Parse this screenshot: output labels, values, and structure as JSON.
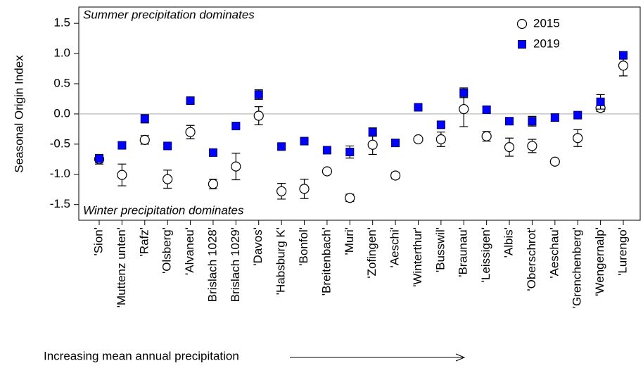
{
  "chart_data": {
    "type": "errorbar",
    "y_label": "Seasonal Origin Index",
    "annotations": [
      "Summer precipitation dominates",
      "Winter precipitation dominates"
    ],
    "x_note": "Increasing mean annual precipitation",
    "categories": [
      "'Sion'",
      "'Muttenz unten'",
      "'Rafz'",
      "'Olsberg'",
      "'Alvaneu'",
      "Brislach 1028'",
      "Brislach 1029'",
      "'Davos'",
      "'Habsburg K'",
      "'Bonfol'",
      "'Breitenbach'",
      "'Muri'",
      "'Zofingen'",
      "'Aeschi'",
      "'Winterthur'",
      "'Busswil'",
      "'Braunau'",
      "'Leissigen'",
      "'Albis'",
      "'Oberschrot'",
      "'Aeschau'",
      "'Grenchenberg'",
      "'Wengernalp'",
      "'Lurengo'"
    ],
    "series": [
      {
        "name": "2015",
        "marker": "circle",
        "color": "#000000",
        "values": [
          -0.75,
          -1.01,
          -0.43,
          -1.08,
          -0.3,
          -1.16,
          -0.87,
          -0.03,
          -1.28,
          -1.24,
          -0.95,
          -1.39,
          -0.51,
          -1.02,
          -0.42,
          -0.42,
          0.08,
          -0.37,
          -0.55,
          -0.53,
          -0.79,
          -0.4,
          0.1,
          0.8
        ],
        "errors": [
          0.08,
          0.18,
          0.07,
          0.15,
          0.11,
          0.08,
          0.22,
          0.15,
          0.13,
          0.16,
          0.04,
          0.06,
          0.16,
          0.05,
          0.01,
          0.12,
          0.29,
          0.08,
          0.15,
          0.11,
          0.03,
          0.14,
          0.06,
          0.17
        ]
      },
      {
        "name": "2019",
        "marker": "square",
        "color": "#0000ff",
        "values": [
          -0.74,
          -0.52,
          -0.08,
          -0.53,
          0.22,
          -0.64,
          -0.2,
          0.32,
          -0.54,
          -0.45,
          -0.6,
          -0.63,
          -0.3,
          -0.48,
          0.11,
          -0.18,
          0.35,
          0.07,
          -0.12,
          -0.12,
          -0.06,
          -0.02,
          0.2,
          0.97
        ],
        "errors": [
          0.05,
          0.05,
          0.07,
          0.03,
          0.05,
          0.04,
          0.03,
          0.08,
          0.04,
          0.03,
          0.04,
          0.1,
          0.07,
          0.06,
          0.04,
          0.05,
          0.08,
          0.05,
          0.05,
          0.08,
          0.06,
          0.05,
          0.12,
          0.06
        ]
      }
    ],
    "ylim": [
      -1.76,
      1.77
    ],
    "yticks": [
      {
        "value": -1.5,
        "label": "-1.5"
      },
      {
        "value": -1,
        "label": "-1.0"
      },
      -0.5,
      {
        "value": 0,
        "label": "0.0"
      },
      0.5,
      {
        "value": 1,
        "label": "1.0"
      },
      1.5
    ],
    "reference_line": 0,
    "legend": "top-right"
  }
}
